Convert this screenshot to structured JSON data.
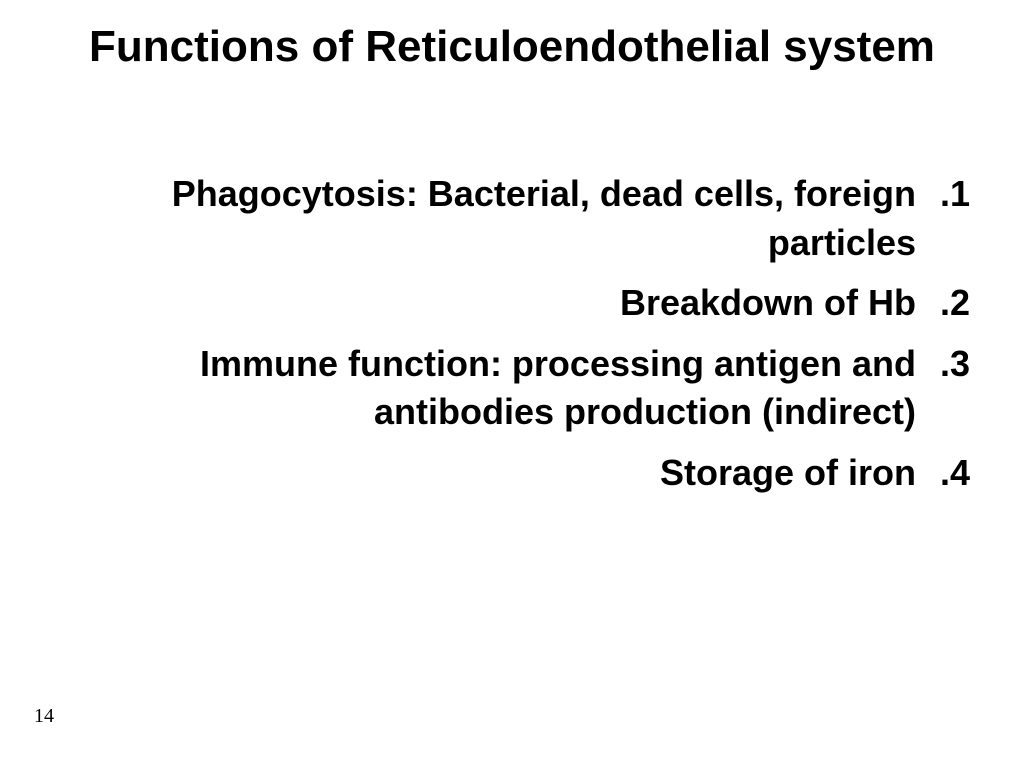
{
  "slide": {
    "title": "Functions of Reticuloendothelial system",
    "title_fontsize": 44,
    "title_weight": 700,
    "items": [
      {
        "n": ".1",
        "text": "Phagocytosis: Bacterial, dead cells, foreign particles"
      },
      {
        "n": ".2",
        "text": "Breakdown of Hb"
      },
      {
        "n": ".3",
        "text": "Immune function: processing antigen and antibodies production (indirect)"
      },
      {
        "n": ".4",
        "text": "Storage of iron"
      }
    ],
    "body_fontsize": 36,
    "body_weight": 700,
    "text_color": "#000000",
    "background_color": "#ffffff",
    "page_number": "14",
    "page_number_fontsize": 20,
    "font_family_title": "Verdana",
    "font_family_body": "Verdana",
    "font_family_pagenum": "Times New Roman",
    "list_direction": "rtl"
  }
}
